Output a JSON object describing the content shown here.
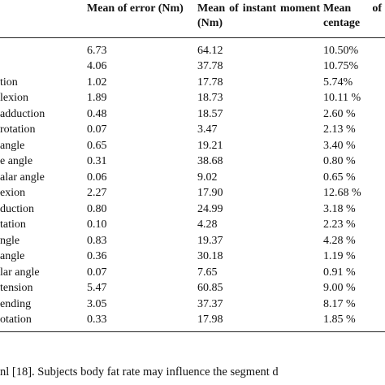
{
  "table": {
    "columns": [
      "",
      "Mean of error (Nm)",
      "Mean of instant moment (Nm)",
      "Mean of centage"
    ],
    "rows": [
      [
        "",
        "6.73",
        "64.12",
        "10.50%"
      ],
      [
        "",
        "4.06",
        "37.78",
        "10.75%"
      ],
      [
        "tion",
        "1.02",
        "17.78",
        "5.74%"
      ],
      [
        "lexion",
        "1.89",
        "18.73",
        "10.11 %"
      ],
      [
        "adduction",
        "0.48",
        "18.57",
        "2.60 %"
      ],
      [
        "rotation",
        "0.07",
        "3.47",
        "2.13 %"
      ],
      [
        "angle",
        "0.65",
        "19.21",
        "3.40 %"
      ],
      [
        "e angle",
        "0.31",
        "38.68",
        "0.80 %"
      ],
      [
        "alar angle",
        "0.06",
        "9.02",
        "0.65 %"
      ],
      [
        "exion",
        "2.27",
        "17.90",
        "12.68 %"
      ],
      [
        "duction",
        "0.80",
        "24.99",
        "3.18 %"
      ],
      [
        "tation",
        "0.10",
        "4.28",
        "2.23 %"
      ],
      [
        "ngle",
        "0.83",
        "19.37",
        "4.28 %"
      ],
      [
        "angle",
        "0.36",
        "30.18",
        "1.19 %"
      ],
      [
        "lar angle",
        "0.07",
        "7.65",
        "0.91 %"
      ],
      [
        "tension",
        "5.47",
        "60.85",
        "9.00 %"
      ],
      [
        "ending",
        "3.05",
        "37.37",
        "8.17 %"
      ],
      [
        "otation",
        "0.33",
        "17.98",
        "1.85 %"
      ]
    ]
  },
  "footer_text": "nl [18]. Subjects body fat rate may influence the segment d"
}
